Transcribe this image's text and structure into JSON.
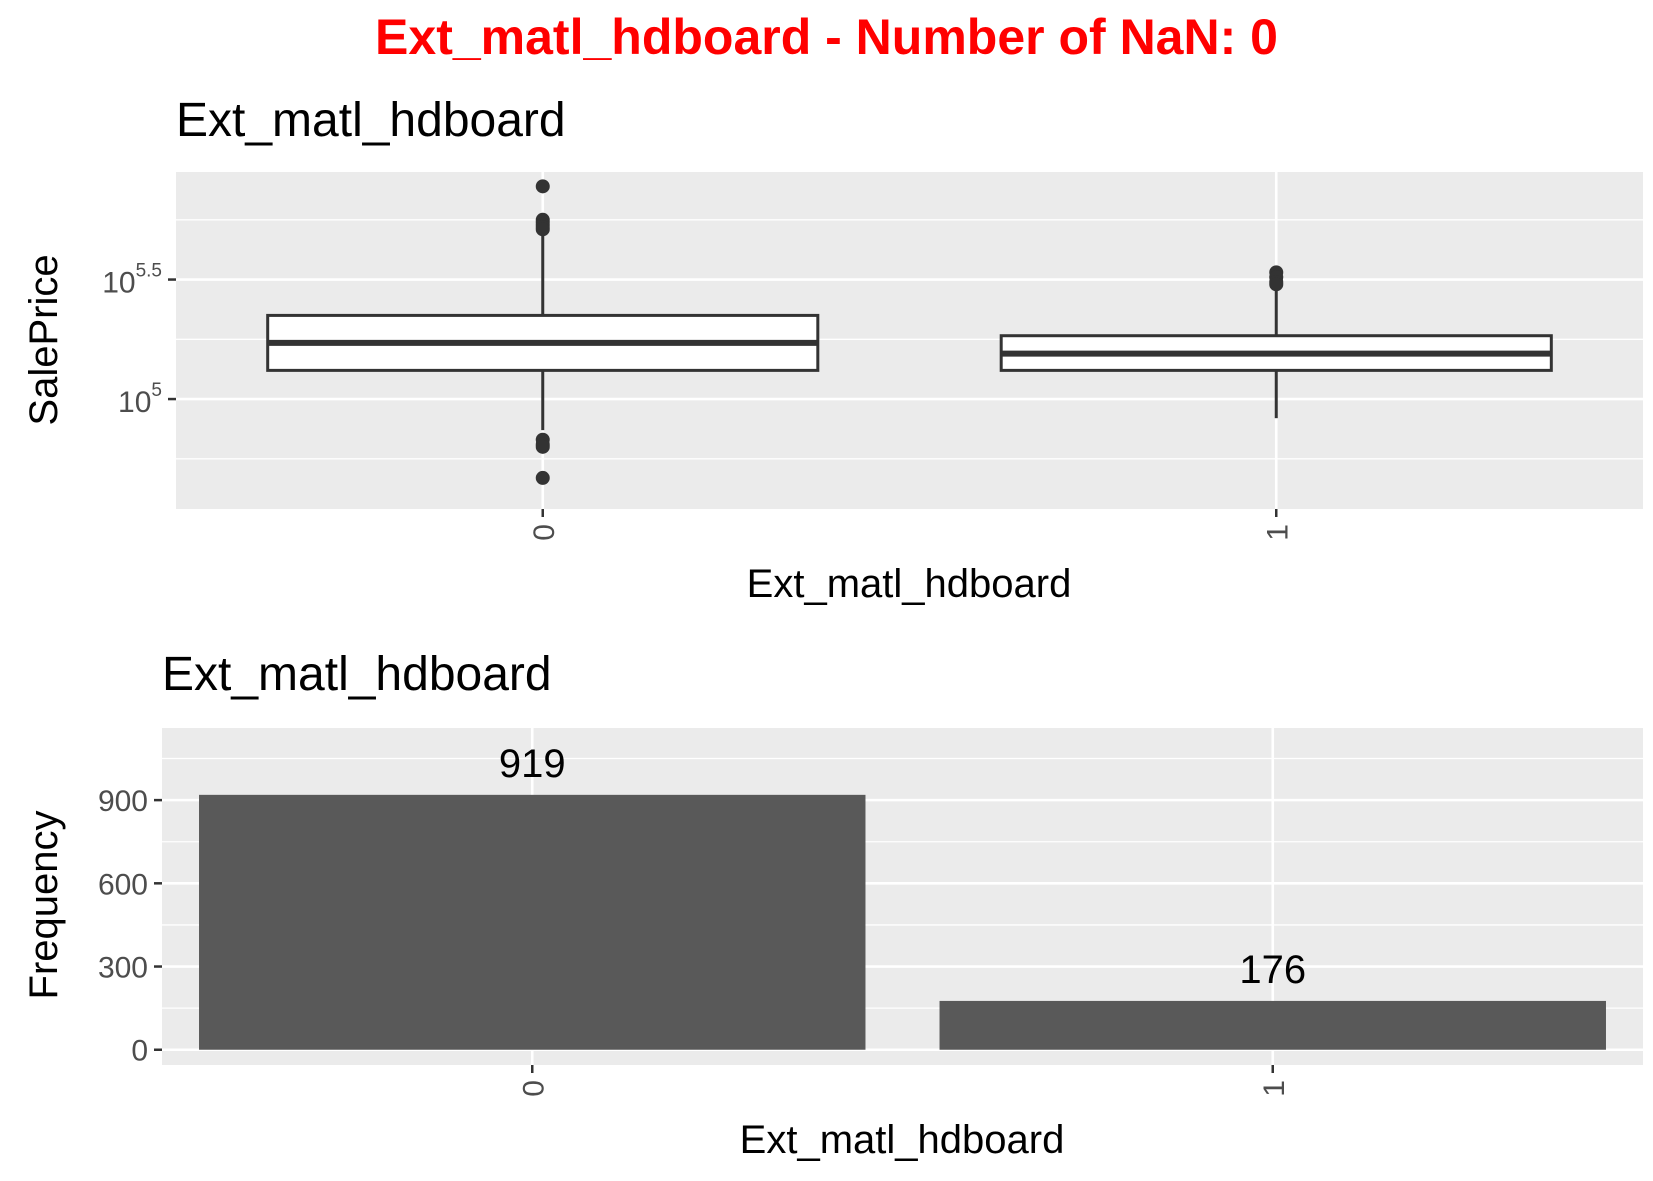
{
  "title": "Ext_matl_hdboard - Number of NaN: 0",
  "colors": {
    "title": "#ff0000",
    "panel": "#ebebeb",
    "grid": "#ffffff",
    "bar": "#595959",
    "box_line": "#333333"
  },
  "chart_data": [
    {
      "type": "box",
      "title": "Ext_matl_hdboard",
      "xlabel": "Ext_matl_hdboard",
      "ylabel": "SalePrice",
      "y_scale": "log10",
      "categories": [
        "0",
        "1"
      ],
      "y_ticks": [
        {
          "base": "10",
          "exp": "5",
          "value": 5
        },
        {
          "base": "10",
          "exp": "5.5",
          "value": 5.5
        }
      ],
      "ylim": [
        4.54,
        5.95
      ],
      "grid": true,
      "boxes": [
        {
          "category": "0",
          "q1": 5.12,
          "median": 5.235,
          "q3": 5.35,
          "whisker_low": 4.87,
          "whisker_high": 5.69,
          "outliers": [
            5.89,
            5.75,
            5.74,
            5.73,
            5.72,
            5.71,
            4.83,
            4.81,
            4.8,
            4.67
          ]
        },
        {
          "category": "1",
          "q1": 5.12,
          "median": 5.19,
          "q3": 5.265,
          "whisker_low": 4.92,
          "whisker_high": 5.46,
          "outliers": [
            5.53,
            5.51,
            5.49,
            5.48
          ]
        }
      ]
    },
    {
      "type": "bar",
      "title": "Ext_matl_hdboard",
      "xlabel": "Ext_matl_hdboard",
      "ylabel": "Frequency",
      "categories": [
        "0",
        "1"
      ],
      "values": [
        919,
        176
      ],
      "data_labels": [
        "919",
        "176"
      ],
      "y_ticks": [
        "0",
        "300",
        "600",
        "900"
      ],
      "ylim": [
        -55,
        1160
      ],
      "grid": true
    }
  ]
}
